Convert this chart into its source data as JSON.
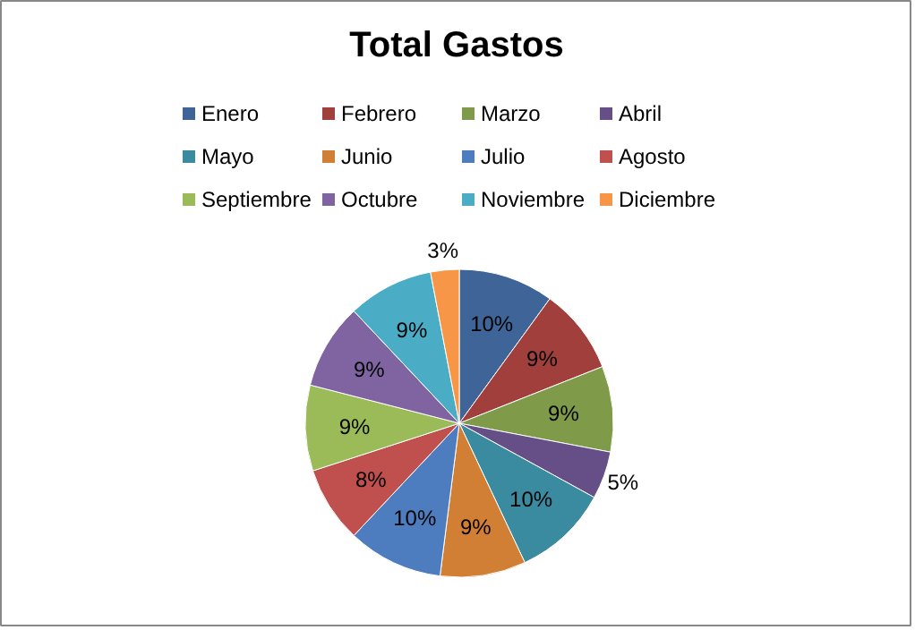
{
  "chart_data": {
    "type": "pie",
    "title": "Total Gastos",
    "categories": [
      "Enero",
      "Febrero",
      "Marzo",
      "Abril",
      "Mayo",
      "Junio",
      "Julio",
      "Agosto",
      "Septiembre",
      "Octubre",
      "Noviembre",
      "Diciembre"
    ],
    "values": [
      10,
      9,
      9,
      5,
      10,
      9,
      10,
      8,
      9,
      9,
      9,
      3
    ],
    "value_labels": [
      "10%",
      "9%",
      "9%",
      "5%",
      "10%",
      "9%",
      "10%",
      "8%",
      "9%",
      "9%",
      "9%",
      "3%"
    ],
    "colors": [
      "#3f6598",
      "#a03f3c",
      "#7f9a48",
      "#664f86",
      "#3a8ba0",
      "#d17f35",
      "#4d7dbf",
      "#c0504d",
      "#9bbb59",
      "#8064a2",
      "#4bacc6",
      "#f79646"
    ],
    "legend": "top"
  }
}
